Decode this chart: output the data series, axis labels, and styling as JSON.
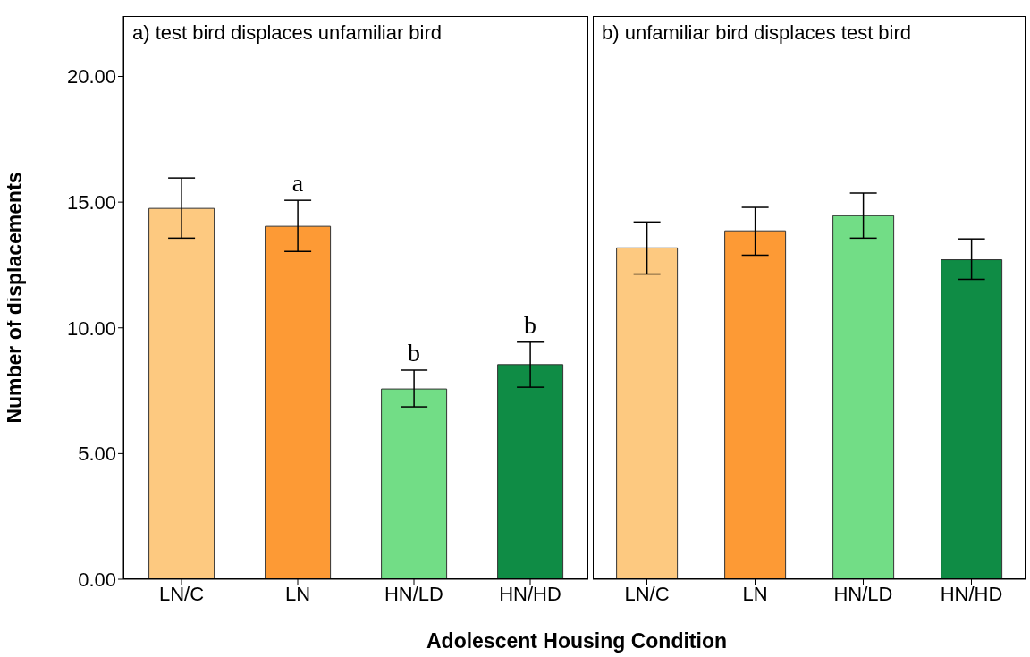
{
  "chart_data": [
    {
      "type": "bar",
      "title": "a) test bird displaces unfamiliar bird",
      "xlabel": "Adolescent Housing Condition",
      "ylabel": "Number of displacements",
      "categories": [
        "LN/C",
        "LN",
        "HN/LD",
        "HN/HD"
      ],
      "values": [
        14.75,
        14.04,
        7.57,
        8.54
      ],
      "colors": [
        "#fdc980",
        "#fd9a35",
        "#72dd86",
        "#0f8c45"
      ],
      "errors": [
        [
          13.57,
          15.96
        ],
        [
          13.04,
          15.07
        ],
        [
          6.86,
          8.32
        ],
        [
          7.64,
          9.43
        ]
      ],
      "ylim": [
        0,
        22.4
      ],
      "yticks": [
        {
          "value": 0,
          "label": "0.00"
        },
        {
          "value": 5,
          "label": "5.00"
        },
        {
          "value": 10,
          "label": "10.00"
        },
        {
          "value": 15,
          "label": "15.00"
        },
        {
          "value": 20,
          "label": "20.00"
        }
      ],
      "annotations": [
        "a",
        "b",
        "b"
      ],
      "grid": false,
      "legend": false
    },
    {
      "type": "bar",
      "title": "b) unfamiliar bird displaces test bird",
      "categories": [
        "LN/C",
        "LN",
        "HN/LD",
        "HN/HD"
      ],
      "values": [
        13.18,
        13.86,
        14.46,
        12.71
      ],
      "colors": [
        "#fdc980",
        "#fd9a35",
        "#72dd86",
        "#0f8c45"
      ],
      "errors": [
        [
          12.14,
          14.21
        ],
        [
          12.89,
          14.79
        ],
        [
          13.57,
          15.36
        ],
        [
          11.93,
          13.54
        ]
      ],
      "ylim": [
        0,
        22.4
      ],
      "tick_labels": "x",
      "grid": false,
      "legend": false
    }
  ]
}
